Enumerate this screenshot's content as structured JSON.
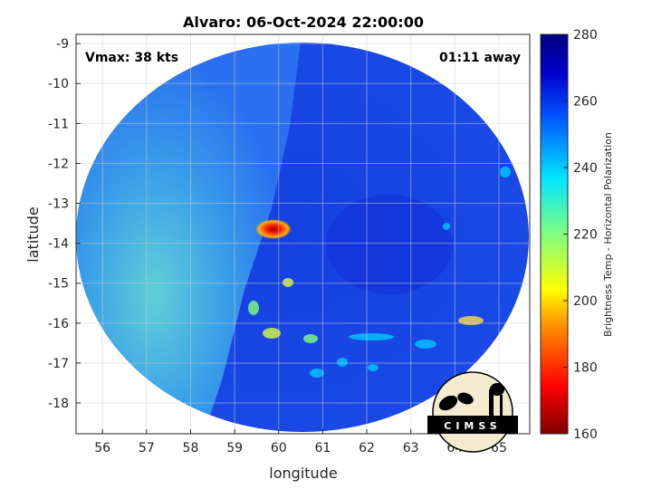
{
  "chart_data": {
    "type": "heatmap",
    "title": "Alvaro: 06-Oct-2024 22:00:00",
    "xlabel": "longitude",
    "ylabel": "latitude",
    "xlim": [
      55.4,
      65.7
    ],
    "ylim": [
      -18.77,
      -8.77
    ],
    "xticks": [
      56,
      57,
      58,
      59,
      60,
      61,
      62,
      63,
      64,
      65
    ],
    "yticks": [
      -9,
      -10,
      -11,
      -12,
      -13,
      -14,
      -15,
      -16,
      -17,
      -18
    ],
    "grid": true,
    "annotations": {
      "vmax": "Vmax: 38 kts",
      "away": "01:11 away"
    },
    "colorbar": {
      "label": "Brightness Temp - Horizontal Polarization",
      "range": [
        160,
        280
      ],
      "ticks": [
        160,
        180,
        200,
        220,
        240,
        260,
        280
      ],
      "colormap": "jet"
    },
    "features": {
      "min_temp_center": {
        "lon": 59.9,
        "lat": -13.7,
        "value": 165
      },
      "swath_center": {
        "lon": 60.0,
        "lat": -13.8
      }
    }
  },
  "logo": {
    "text": "CIMSS"
  }
}
